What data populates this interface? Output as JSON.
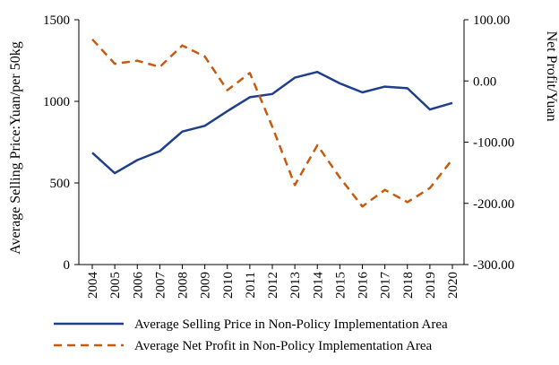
{
  "chart_data": {
    "type": "line",
    "title": "",
    "x": [
      "2004",
      "2005",
      "2006",
      "2007",
      "2008",
      "2009",
      "2010",
      "2011",
      "2012",
      "2013",
      "2014",
      "2015",
      "2016",
      "2017",
      "2018",
      "2019",
      "2020"
    ],
    "left_axis": {
      "label": "Average Selling Price:Yuan/per 50kg",
      "ylim": [
        0,
        1500
      ],
      "ticks": [
        0,
        500,
        1000,
        1500
      ],
      "tick_labels": [
        "0",
        "500",
        "1000",
        "1500"
      ]
    },
    "right_axis": {
      "label": "Net Profit/Yuan",
      "ylim": [
        -300,
        100
      ],
      "ticks": [
        100,
        0,
        -100,
        -200,
        -300
      ],
      "tick_labels": [
        "100.00",
        "0.00",
        "-100.00",
        "-200.00",
        "-300.00"
      ]
    },
    "series": [
      {
        "name": "Average Selling Price in Non-Policy Implementation Area",
        "axis": "left",
        "style": "solid",
        "color": "#1f3f8c",
        "values": [
          685,
          560,
          640,
          695,
          815,
          850,
          940,
          1025,
          1045,
          1145,
          1180,
          1110,
          1055,
          1090,
          1080,
          950,
          990
        ]
      },
      {
        "name": "Average Net Profit in Non-Policy Implementation Area",
        "axis": "right",
        "style": "dashed",
        "color": "#c55a11",
        "values": [
          68,
          28,
          33,
          23,
          58,
          40,
          -15,
          13,
          -75,
          -170,
          -105,
          -158,
          -205,
          -178,
          -198,
          -175,
          -128
        ]
      }
    ],
    "legend_position": "bottom"
  }
}
